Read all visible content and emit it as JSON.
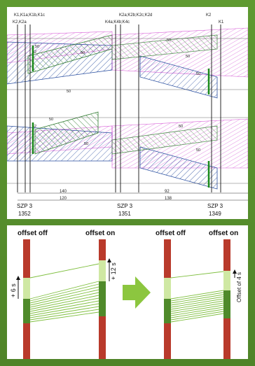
{
  "top": {
    "labels": {
      "k1group": "K1,K1a;K1b,K1c",
      "k2group": "K2,K2a",
      "k4group": "K4a;K4b;K4c",
      "k2mid": "K2a;K2b;K2c;K2d",
      "k2right": "K2",
      "k1right": "K1"
    },
    "band_values": [
      "50",
      "50",
      "50",
      "50",
      "50",
      "50",
      "50",
      "50",
      "50",
      "50",
      "52",
      "52"
    ],
    "distances": {
      "upper": [
        "140",
        "92"
      ],
      "lower": [
        "120",
        "138"
      ]
    },
    "stations": [
      {
        "code": "SZP 3",
        "number": "1352"
      },
      {
        "code": "SZP 3",
        "number": "1351"
      },
      {
        "code": "SZP 3",
        "number": "1349"
      }
    ]
  },
  "bottom": {
    "left_diagram": {
      "offset_off": "offset off",
      "offset_on": "offset on",
      "left_shift": "+ 6 s",
      "right_shift": "+ 12 s"
    },
    "right_diagram": {
      "offset_off": "offset off",
      "offset_on": "offset on",
      "offset_label": "Offset of 4 s"
    }
  },
  "colors": {
    "green": "#4f8a2a",
    "blue": "#2a4fa0",
    "magenta": "#cc33cc",
    "red": "#b93a2b",
    "light_green": "#cfe8a3",
    "arrow_green": "#8cc63f"
  }
}
